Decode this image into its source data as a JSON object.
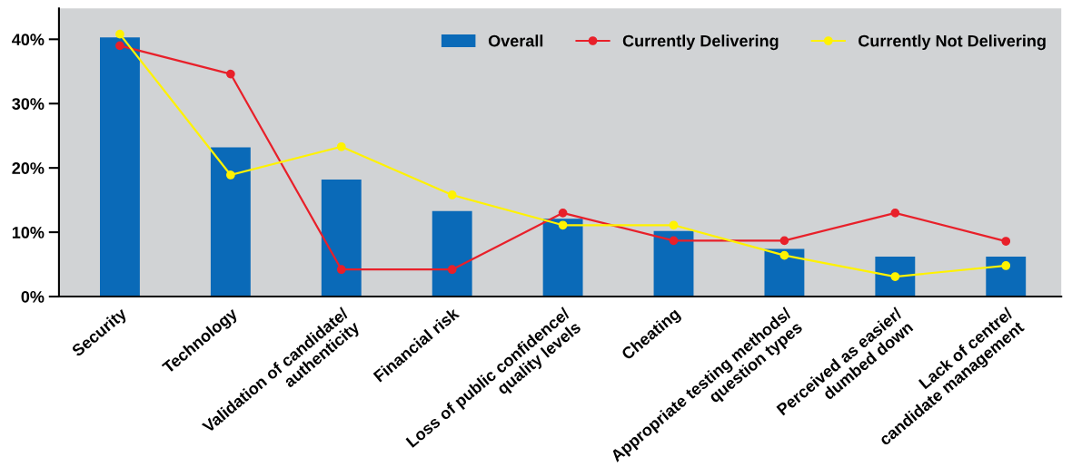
{
  "chart_data": {
    "type": "bar",
    "categories": [
      "Security",
      "Technology",
      "Validation of candidate/\nauthenticity",
      "Financial risk",
      "Loss of public confidence/\nquality levels",
      "Cheating",
      "Appropriate testing methods/\nquestion types",
      "Perceived as easier/\ndumbed down",
      "Lack of centre/\ncandidate management"
    ],
    "series": [
      {
        "name": "Overall",
        "color": "#0a6ab8",
        "values": [
          40.3,
          23.2,
          18.2,
          13.3,
          12.1,
          10.2,
          7.4,
          6.2,
          6.2
        ]
      },
      {
        "name": "Currently Delivering",
        "type": "line",
        "color": "#e8202a",
        "values": [
          39.0,
          34.6,
          4.2,
          4.2,
          13.0,
          8.7,
          8.7,
          13.0,
          8.6
        ]
      },
      {
        "name": "Currently Not Delivering",
        "type": "line",
        "color": "#fff200",
        "values": [
          40.8,
          18.9,
          23.3,
          15.8,
          11.1,
          11.1,
          6.4,
          3.1,
          4.8
        ]
      }
    ],
    "ylim": [
      0,
      44.8
    ],
    "yticks": [
      {
        "value": 0,
        "label": "0%"
      },
      {
        "value": 10,
        "label": "10%"
      },
      {
        "value": 20,
        "label": "20%"
      },
      {
        "value": 30,
        "label": "30%"
      },
      {
        "value": 40,
        "label": "40%"
      }
    ],
    "grid": false,
    "legend": "top right",
    "marker": "circle",
    "line_style": "solid"
  }
}
